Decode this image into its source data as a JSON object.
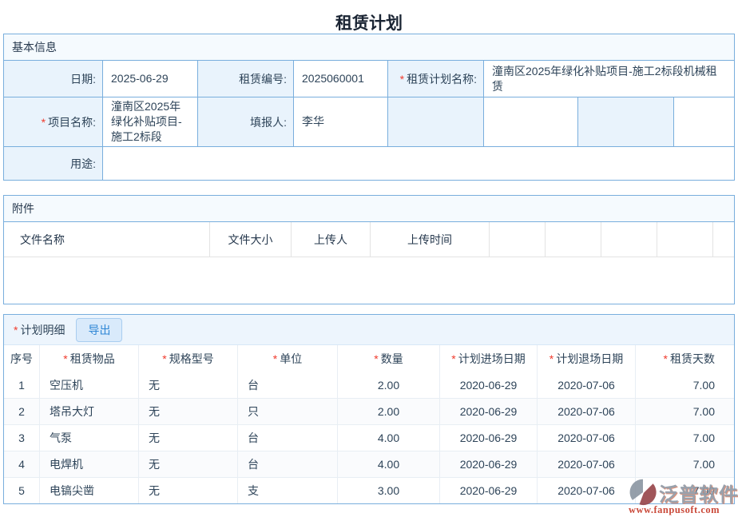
{
  "page_title": "租赁计划",
  "required_marker": "*",
  "basic_info": {
    "section_title": "基本信息",
    "fields": {
      "date": {
        "label": "日期:",
        "value": "2025-06-29"
      },
      "rental_no": {
        "label": "租赁编号:",
        "value": "2025060001"
      },
      "plan_name": {
        "label": "租赁计划名称:",
        "value": "潼南区2025年绿化补贴项目-施工2标段机械租赁"
      },
      "project_name": {
        "label": "项目名称:",
        "value": "潼南区2025年绿化补贴项目-施工2标段"
      },
      "reporter": {
        "label": "填报人:",
        "value": "李华"
      },
      "purpose": {
        "label": "用途:",
        "value": ""
      }
    }
  },
  "attachments": {
    "section_title": "附件",
    "columns": [
      "文件名称",
      "文件大小",
      "上传人",
      "上传时间"
    ]
  },
  "plan_details": {
    "section_title": "计划明细",
    "export_label": "导出",
    "columns": [
      {
        "label": "序号",
        "required": false
      },
      {
        "label": "租赁物品",
        "required": true
      },
      {
        "label": "规格型号",
        "required": true
      },
      {
        "label": "单位",
        "required": true
      },
      {
        "label": "数量",
        "required": true
      },
      {
        "label": "计划进场日期",
        "required": true
      },
      {
        "label": "计划退场日期",
        "required": true
      },
      {
        "label": "租赁天数",
        "required": true
      }
    ],
    "rows": [
      {
        "no": "1",
        "item": "空压机",
        "spec": "无",
        "unit": "台",
        "qty": "2.00",
        "enter_date": "2020-06-29",
        "exit_date": "2020-07-06",
        "days": "7.00"
      },
      {
        "no": "2",
        "item": "塔吊大灯",
        "spec": "无",
        "unit": "只",
        "qty": "2.00",
        "enter_date": "2020-06-29",
        "exit_date": "2020-07-06",
        "days": "7.00"
      },
      {
        "no": "3",
        "item": "气泵",
        "spec": "无",
        "unit": "台",
        "qty": "4.00",
        "enter_date": "2020-06-29",
        "exit_date": "2020-07-06",
        "days": "7.00"
      },
      {
        "no": "4",
        "item": "电焊机",
        "spec": "无",
        "unit": "台",
        "qty": "4.00",
        "enter_date": "2020-06-29",
        "exit_date": "2020-07-06",
        "days": "7.00"
      },
      {
        "no": "5",
        "item": "电镐尖凿",
        "spec": "无",
        "unit": "支",
        "qty": "3.00",
        "enter_date": "2020-06-29",
        "exit_date": "2020-07-06",
        "days": "7.00"
      }
    ]
  },
  "watermark": {
    "brand": "泛普软件",
    "url": "www.fanpusoft.com"
  },
  "colors": {
    "border_blue": "#79aedd",
    "label_bg": "#e9f3fc",
    "section_header_bg": "#f5fafe",
    "detail_bar_bg": "#edf5fd",
    "required_red": "#f03b2d",
    "button_text": "#2e86d5",
    "button_bg": "#d9eafb",
    "watermark_red": "#c63b2a"
  }
}
